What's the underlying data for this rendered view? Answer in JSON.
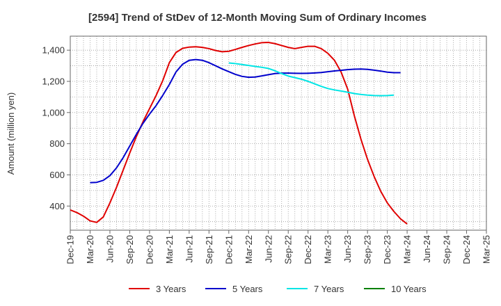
{
  "chart_data": {
    "type": "line",
    "title": "[2594]  Trend of StDev of 12-Month Moving Sum of Ordinary Incomes",
    "xlabel": "",
    "ylabel": "Amount (million yen)",
    "ylim": [
      245,
      1490
    ],
    "yticks": [
      400,
      600,
      800,
      1000,
      1200,
      1400
    ],
    "ytick_labels": [
      "400",
      "600",
      "800",
      "1,000",
      "1,200",
      "1,400"
    ],
    "x_labels": [
      "Dec-19",
      "Mar-20",
      "Jun-20",
      "Sep-20",
      "Dec-20",
      "Mar-21",
      "Jun-21",
      "Sep-21",
      "Dec-21",
      "Mar-22",
      "Jun-22",
      "Sep-22",
      "Dec-22",
      "Mar-23",
      "Jun-23",
      "Sep-23",
      "Dec-23",
      "Mar-24",
      "Jun-24",
      "Sep-24",
      "Dec-24",
      "Mar-25"
    ],
    "grid": true,
    "legend_position": "bottom",
    "series": [
      {
        "name": "3 Years",
        "color": "#e00000",
        "start_index": 0,
        "values": [
          375,
          358,
          335,
          305,
          295,
          330,
          420,
          520,
          630,
          740,
          845,
          940,
          1025,
          1110,
          1205,
          1320,
          1385,
          1412,
          1420,
          1422,
          1418,
          1410,
          1398,
          1390,
          1393,
          1405,
          1418,
          1430,
          1440,
          1448,
          1450,
          1442,
          1430,
          1418,
          1410,
          1418,
          1425,
          1425,
          1410,
          1380,
          1335,
          1260,
          1150,
          980,
          830,
          700,
          590,
          495,
          420,
          365,
          318,
          285
        ]
      },
      {
        "name": "5 Years",
        "color": "#0000cc",
        "start_index": 3,
        "values": [
          550,
          552,
          565,
          595,
          645,
          710,
          785,
          860,
          930,
          990,
          1045,
          1110,
          1180,
          1260,
          1310,
          1335,
          1340,
          1335,
          1320,
          1300,
          1280,
          1262,
          1245,
          1232,
          1226,
          1228,
          1235,
          1243,
          1250,
          1253,
          1253,
          1252,
          1251,
          1252,
          1254,
          1257,
          1262,
          1267,
          1271,
          1275,
          1278,
          1279,
          1277,
          1272,
          1266,
          1259,
          1256,
          1256
        ]
      },
      {
        "name": "7 Years",
        "color": "#00e5e5",
        "start_index": 24,
        "values": [
          1318,
          1314,
          1308,
          1302,
          1296,
          1290,
          1283,
          1268,
          1250,
          1234,
          1224,
          1214,
          1200,
          1184,
          1168,
          1154,
          1145,
          1138,
          1130,
          1122,
          1116,
          1112,
          1109,
          1108,
          1109,
          1112
        ]
      },
      {
        "name": "10 Years",
        "color": "#008000",
        "start_index": 0,
        "values": []
      }
    ]
  }
}
